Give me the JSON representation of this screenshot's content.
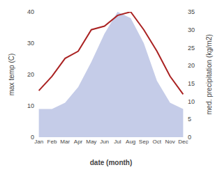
{
  "chart_data": {
    "type": "line",
    "categories": [
      "Jan",
      "Feb",
      "Mar",
      "Apr",
      "May",
      "Jun",
      "Jul",
      "Aug",
      "Sep",
      "Oct",
      "Nov",
      "Dec"
    ],
    "series": [
      {
        "type": "area",
        "color": "#c5cce8",
        "values": [
          9,
          9,
          11,
          16,
          24,
          33,
          40,
          38,
          30,
          18,
          11,
          9
        ]
      },
      {
        "type": "line",
        "color": "#aa2222",
        "axis": "y2",
        "values": [
          13,
          17,
          22,
          24,
          30,
          31,
          34,
          35,
          30,
          24,
          17,
          12
        ]
      }
    ],
    "xlabel": "date (month)",
    "ylabel": "max temp (C)",
    "y2label": "med. precipitation (kg/m2)",
    "ylim": [
      0,
      40
    ],
    "yticks": [
      0,
      10,
      20,
      30,
      40
    ],
    "y2lim": [
      0,
      35
    ],
    "y2ticks": [
      0,
      5,
      10,
      15,
      20,
      25,
      30,
      35
    ],
    "grid": false
  }
}
